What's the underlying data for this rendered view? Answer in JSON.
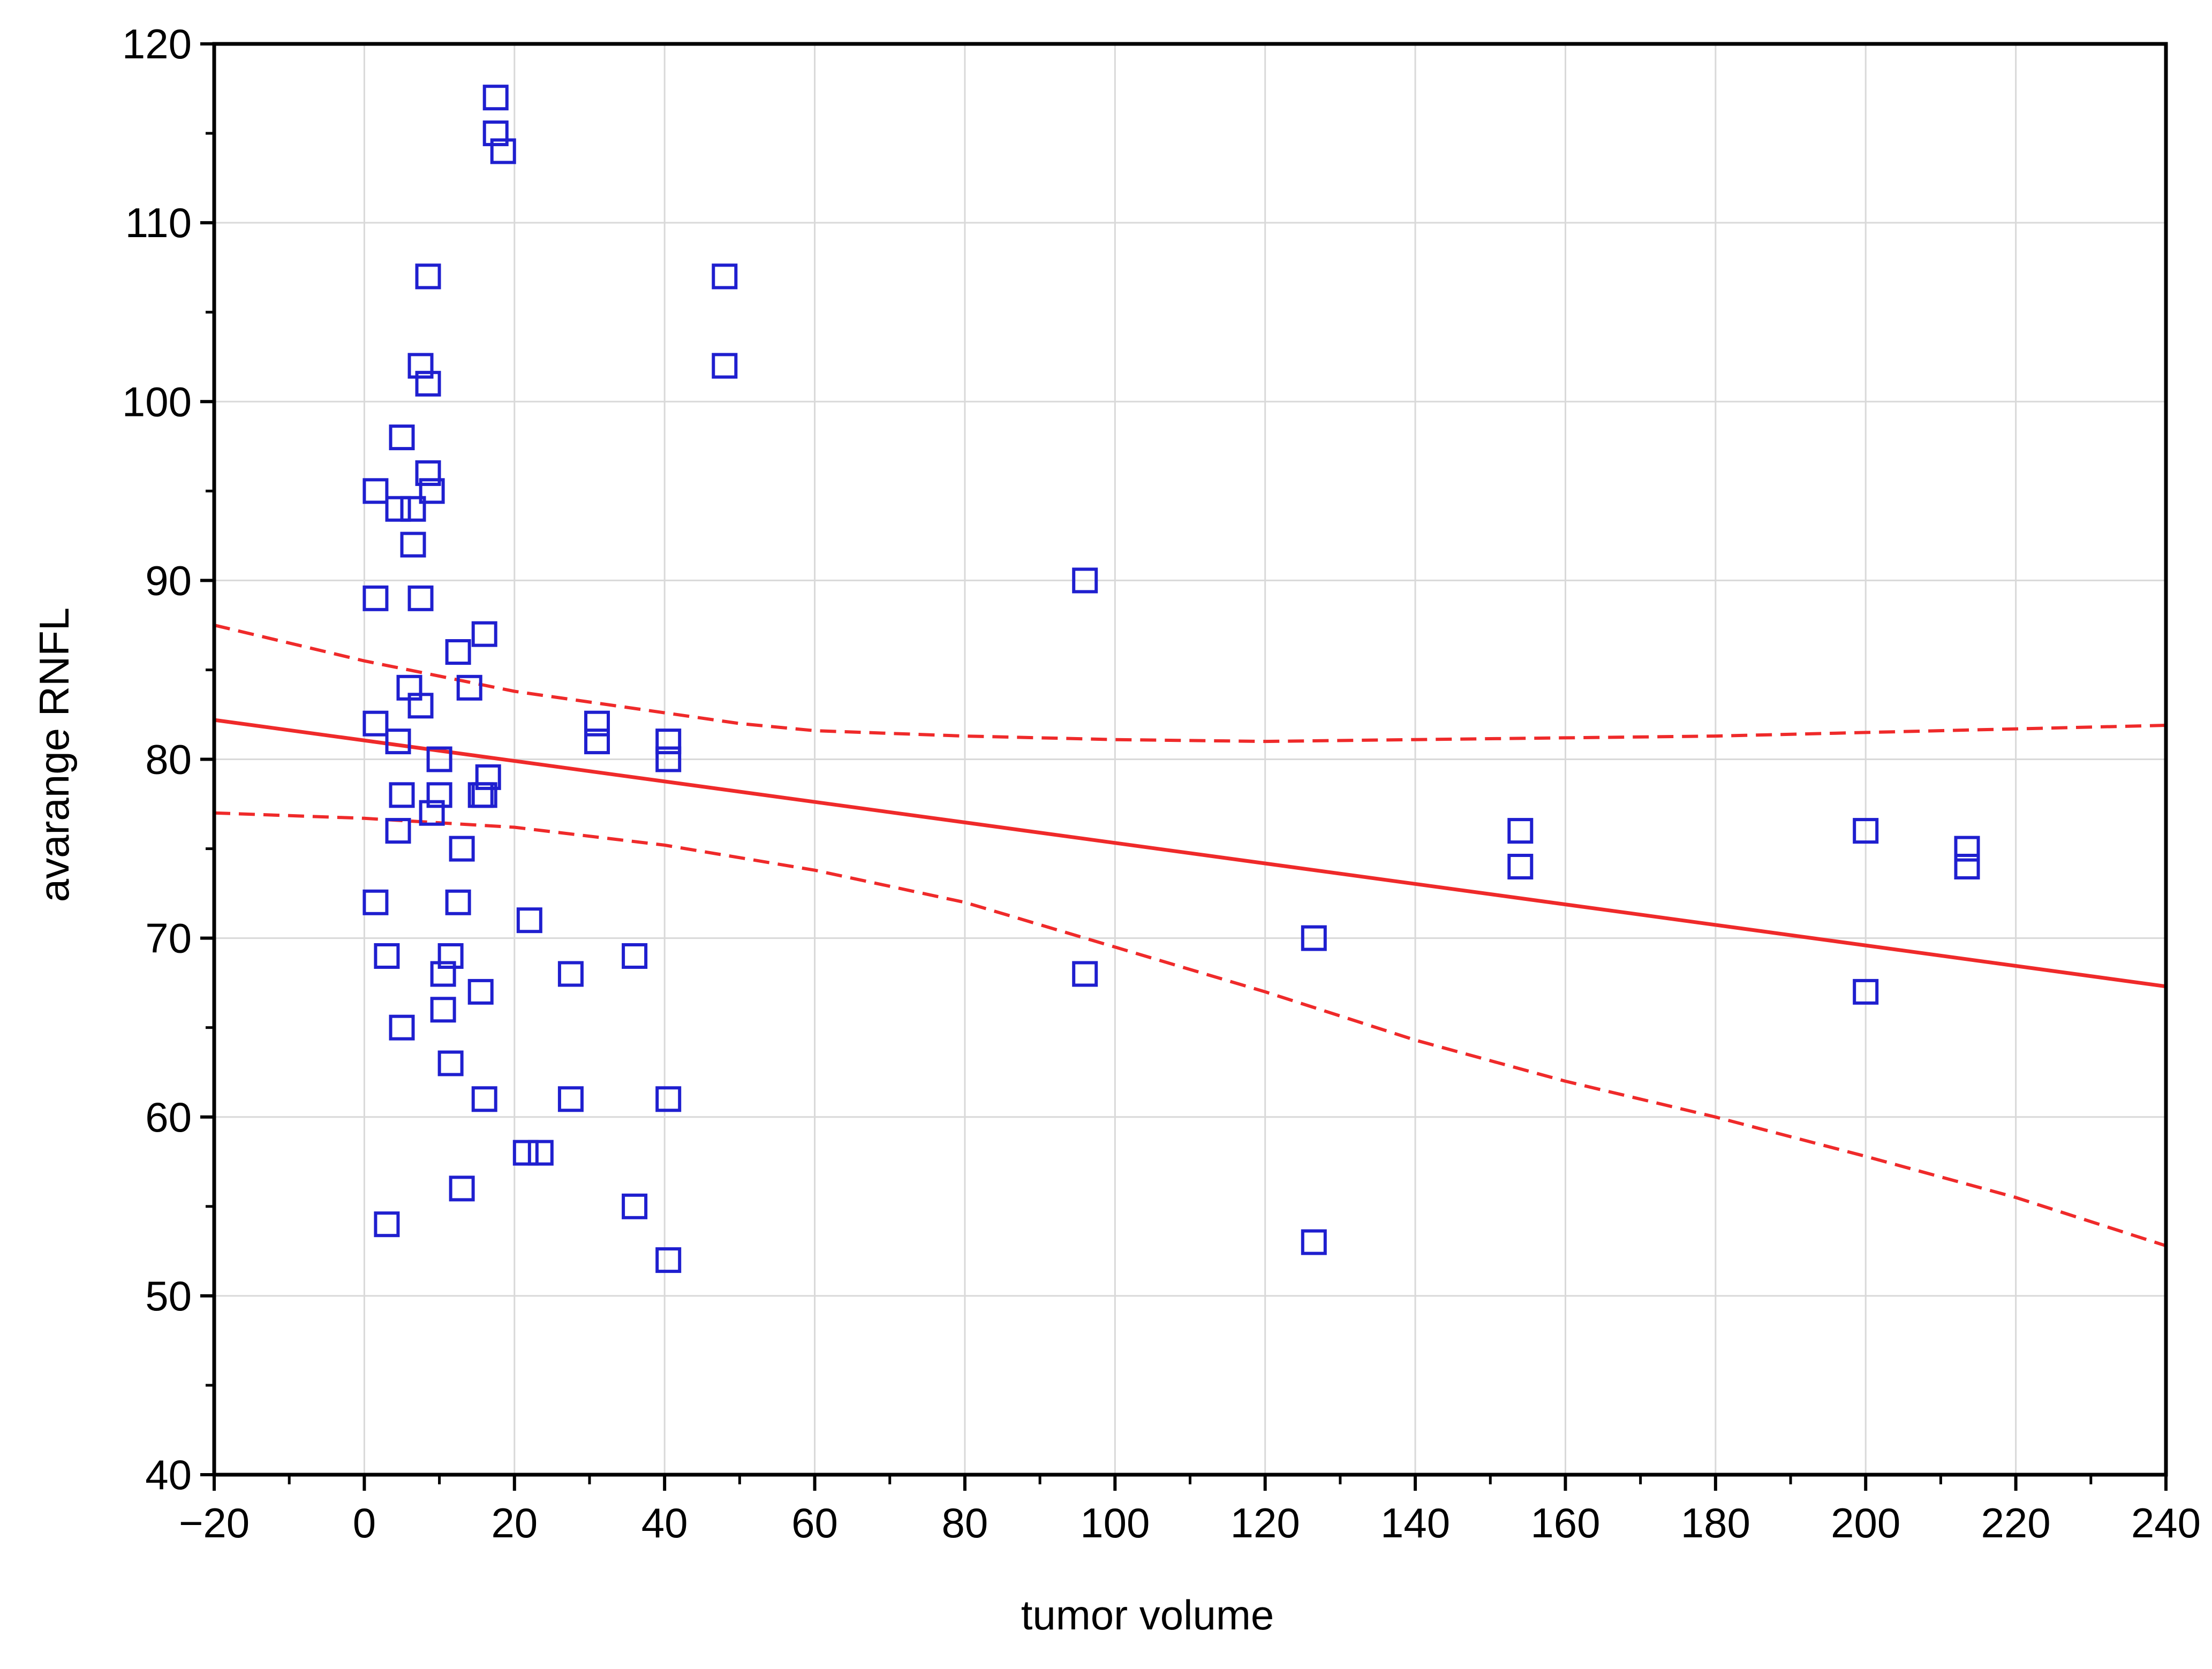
{
  "chart_data": {
    "type": "scatter",
    "xlabel": "tumor volume",
    "ylabel": "avarange RNFL",
    "xlim": [
      -20,
      240
    ],
    "ylim": [
      40,
      120
    ],
    "x_ticks": [
      -20,
      0,
      20,
      40,
      60,
      80,
      100,
      120,
      140,
      160,
      180,
      200,
      220,
      240
    ],
    "x_tick_labels": [
      "−20",
      "0",
      "20",
      "40",
      "60",
      "80",
      "100",
      "120",
      "140",
      "160",
      "180",
      "200",
      "220",
      "240"
    ],
    "y_ticks": [
      40,
      50,
      60,
      70,
      80,
      90,
      100,
      110,
      120
    ],
    "y_tick_labels": [
      "40",
      "50",
      "60",
      "70",
      "80",
      "90",
      "100",
      "110",
      "120"
    ],
    "grid": true,
    "series": [
      {
        "marker": "open-square",
        "points": [
          [
            17.5,
            117
          ],
          [
            17.5,
            115
          ],
          [
            18.5,
            114
          ],
          [
            8.5,
            107
          ],
          [
            48,
            107
          ],
          [
            7.5,
            102
          ],
          [
            48,
            102
          ],
          [
            8.5,
            101
          ],
          [
            5,
            98
          ],
          [
            8.5,
            96
          ],
          [
            9,
            95
          ],
          [
            1.5,
            95
          ],
          [
            4.5,
            94
          ],
          [
            6.5,
            94
          ],
          [
            6.5,
            92
          ],
          [
            96,
            90
          ],
          [
            1.5,
            89
          ],
          [
            7.5,
            89
          ],
          [
            16,
            87
          ],
          [
            12.5,
            86
          ],
          [
            6,
            84
          ],
          [
            14,
            84
          ],
          [
            7.5,
            83
          ],
          [
            1.5,
            82
          ],
          [
            31,
            82
          ],
          [
            4.5,
            81
          ],
          [
            31,
            81
          ],
          [
            40.5,
            81
          ],
          [
            10,
            80
          ],
          [
            40.5,
            80
          ],
          [
            16.5,
            79
          ],
          [
            5,
            78
          ],
          [
            10,
            78
          ],
          [
            15.5,
            78
          ],
          [
            16,
            78
          ],
          [
            9,
            77
          ],
          [
            4.5,
            76
          ],
          [
            154,
            76
          ],
          [
            200,
            76
          ],
          [
            13,
            75
          ],
          [
            213.5,
            75
          ],
          [
            154,
            74
          ],
          [
            213.5,
            74
          ],
          [
            1.5,
            72
          ],
          [
            12.5,
            72
          ],
          [
            22,
            71
          ],
          [
            126.5,
            70
          ],
          [
            3,
            69
          ],
          [
            11.5,
            69
          ],
          [
            36,
            69
          ],
          [
            10.5,
            68
          ],
          [
            27.5,
            68
          ],
          [
            96,
            68
          ],
          [
            15.5,
            67
          ],
          [
            200,
            67
          ],
          [
            10.5,
            66
          ],
          [
            5,
            65
          ],
          [
            11.5,
            63
          ],
          [
            16,
            61
          ],
          [
            27.5,
            61
          ],
          [
            40.5,
            61
          ],
          [
            21.5,
            58
          ],
          [
            23.5,
            58
          ],
          [
            13,
            56
          ],
          [
            36,
            55
          ],
          [
            3,
            54
          ],
          [
            126.5,
            53
          ],
          [
            40.5,
            52
          ]
        ]
      },
      {
        "type": "line",
        "role": "regression",
        "points": [
          [
            -20,
            82.2
          ],
          [
            240,
            67.3
          ]
        ]
      },
      {
        "type": "line",
        "role": "upper-confidence",
        "points": [
          [
            -20,
            87.5
          ],
          [
            0,
            85.5
          ],
          [
            20,
            83.8
          ],
          [
            40,
            82.6
          ],
          [
            50,
            82.0
          ],
          [
            60,
            81.6
          ],
          [
            80,
            81.3
          ],
          [
            100,
            81.1
          ],
          [
            120,
            81.0
          ],
          [
            140,
            81.1
          ],
          [
            160,
            81.2
          ],
          [
            180,
            81.3
          ],
          [
            200,
            81.5
          ],
          [
            220,
            81.7
          ],
          [
            240,
            81.9
          ]
        ]
      },
      {
        "type": "line",
        "role": "lower-confidence",
        "points": [
          [
            -20,
            77.0
          ],
          [
            0,
            76.7
          ],
          [
            20,
            76.2
          ],
          [
            40,
            75.2
          ],
          [
            60,
            73.8
          ],
          [
            80,
            72.0
          ],
          [
            100,
            69.5
          ],
          [
            120,
            67.0
          ],
          [
            140,
            64.3
          ],
          [
            160,
            62.0
          ],
          [
            180,
            60.0
          ],
          [
            200,
            57.8
          ],
          [
            220,
            55.5
          ],
          [
            240,
            52.8
          ]
        ]
      }
    ],
    "colors": {
      "marker": "#1f1fcf",
      "line": "#ef2a2a",
      "frame": "#000000",
      "grid": "#d9d9d9",
      "background": "#ffffff"
    }
  }
}
